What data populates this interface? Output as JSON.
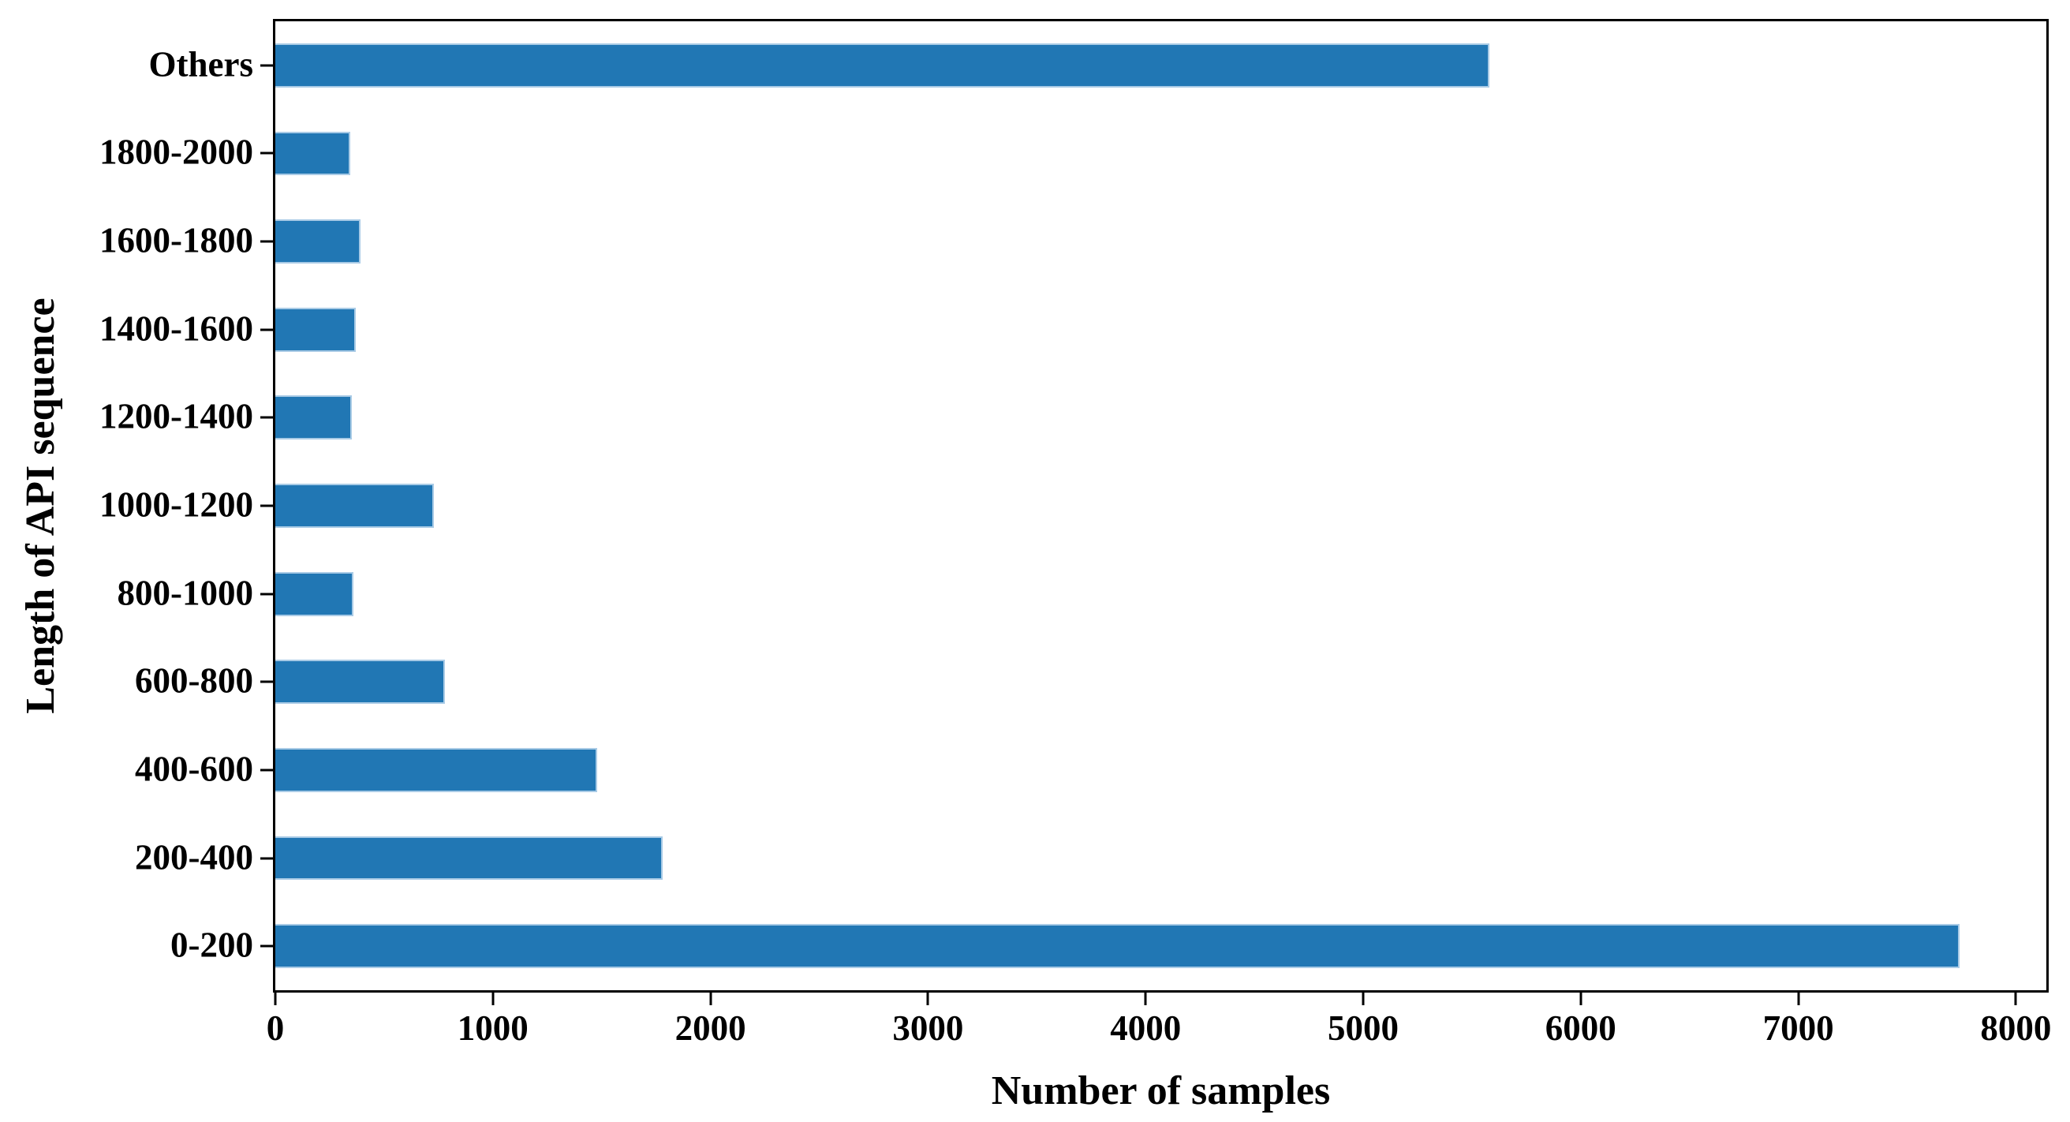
{
  "figure": {
    "background_color": "#ffffff",
    "frame_color": "#000000"
  },
  "chart_data": {
    "type": "bar",
    "orientation": "horizontal",
    "title": "",
    "xlabel": "Number of samples",
    "ylabel": "Length of API sequence",
    "categories": [
      "Others",
      "1800-2000",
      "1600-1800",
      "1400-1600",
      "1200-1400",
      "1000-1200",
      "800-1000",
      "600-800",
      "400-600",
      "200-400",
      "0-200"
    ],
    "values": [
      5580,
      345,
      390,
      370,
      350,
      730,
      360,
      780,
      1480,
      1780,
      7740
    ],
    "categories_order": "top-to-bottom",
    "xlim": [
      0,
      8140
    ],
    "xticks": [
      0,
      1000,
      2000,
      3000,
      4000,
      5000,
      6000,
      7000,
      8000
    ],
    "xtick_labels": [
      "0",
      "1000",
      "2000",
      "3000",
      "4000",
      "5000",
      "6000",
      "7000",
      "8000"
    ],
    "grid": false,
    "legend": null,
    "bar_color": "#2177b4",
    "bar_edge_color": "#a9cbe6",
    "bar_height_fraction": 0.5
  }
}
